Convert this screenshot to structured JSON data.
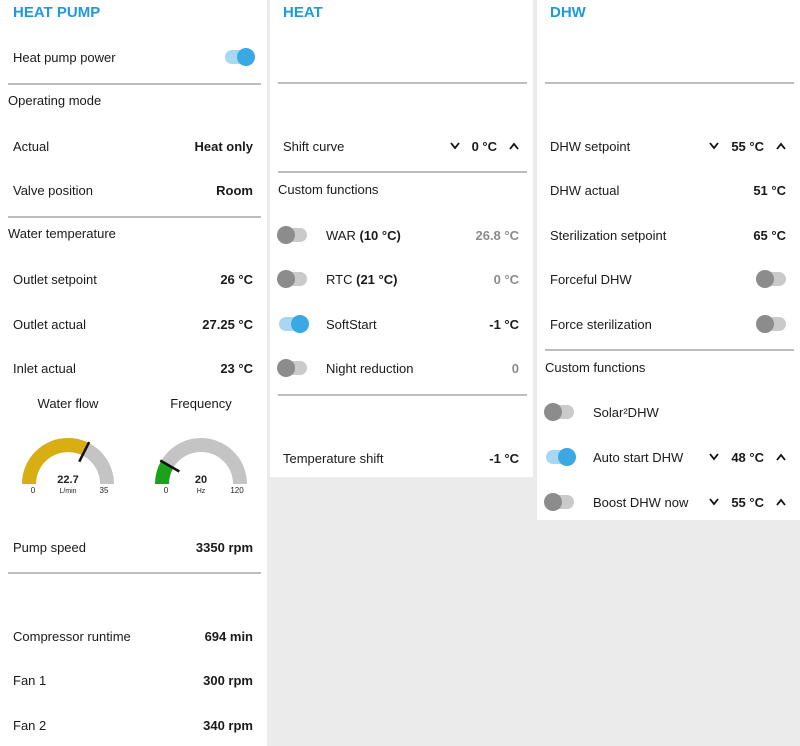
{
  "panels": [
    {
      "title": "HEAT PUMP",
      "items": [
        {
          "label": "Heat pump power",
          "on": true
        },
        {
          "heading": "Operating mode"
        },
        {
          "label": "Actual",
          "value": "Heat only"
        },
        {
          "label": "Valve position",
          "value": "Room"
        },
        {
          "heading": "Water temperature"
        },
        {
          "label": "Outlet setpoint",
          "value": "26 °C"
        },
        {
          "label": "Outlet actual",
          "value": "27.25 °C"
        },
        {
          "label": "Inlet actual",
          "value": "23 °C"
        },
        {
          "label": "Pump speed",
          "value": "3350 rpm"
        },
        {
          "label": "Compressor runtime",
          "value": "694 min"
        },
        {
          "label": "Fan 1",
          "value": "300 rpm"
        },
        {
          "label": "Fan 2",
          "value": "340 rpm"
        }
      ],
      "gauges": [
        {
          "label": "Water flow",
          "value": 22.7,
          "unit": "L/min",
          "min": 0,
          "max": 35,
          "color": "#d8ae12"
        },
        {
          "label": "Frequency",
          "value": 20,
          "unit": "Hz",
          "min": 0,
          "max": 120,
          "color": "#1aa31a"
        }
      ]
    },
    {
      "title": "HEAT",
      "items": [
        {
          "label": "Shift curve",
          "value": "0 °C",
          "arrows": true
        },
        {
          "heading": "Custom functions"
        },
        {
          "label": "WAR",
          "detail": "(10 °C)",
          "value": "26.8 °C",
          "on": false,
          "muted": true
        },
        {
          "label": "RTC",
          "detail": "(21 °C)",
          "value": "0 °C",
          "on": false,
          "muted": true
        },
        {
          "label": "SoftStart",
          "value": "-1 °C",
          "on": true
        },
        {
          "label": "Night reduction",
          "value": "0",
          "on": false,
          "muted": true
        },
        {
          "label": "Temperature shift",
          "value": "-1 °C"
        }
      ]
    },
    {
      "title": "DHW",
      "items": [
        {
          "label": "DHW setpoint",
          "value": "55 °C",
          "arrows": true
        },
        {
          "label": "DHW actual",
          "value": "51 °C"
        },
        {
          "label": "Sterilization setpoint",
          "value": "65 °C"
        },
        {
          "label": "Forceful DHW",
          "on": false
        },
        {
          "label": "Force sterilization",
          "on": false
        },
        {
          "heading": "Custom functions"
        },
        {
          "label": "Solar²DHW",
          "on": false
        },
        {
          "label": "Auto start DHW",
          "value": "48 °C",
          "arrows": true,
          "on": true
        },
        {
          "label": "Boost DHW now",
          "value": "55 °C",
          "arrows": true,
          "on": false
        }
      ]
    }
  ]
}
